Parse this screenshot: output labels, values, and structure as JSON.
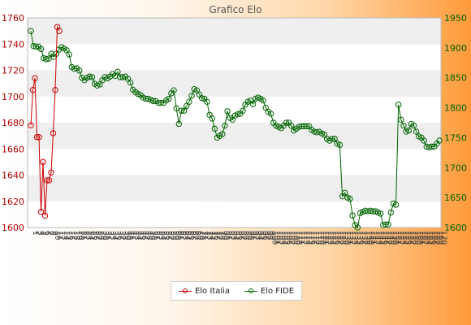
{
  "chart_data": {
    "type": "line",
    "title": "Grafico Elo",
    "xlabel": "",
    "ylabel": "",
    "grid": true,
    "legend_position": "bottom-center",
    "y_left": {
      "lim": [
        1600,
        1760
      ],
      "ticks": [
        1600,
        1620,
        1640,
        1660,
        1680,
        1700,
        1720,
        1740,
        1760
      ]
    },
    "y_right": {
      "lim": [
        1600,
        1950
      ],
      "ticks": [
        1600,
        1650,
        1700,
        1750,
        1800,
        1850,
        1900,
        1950
      ]
    },
    "series": [
      {
        "name": "Elo Italia",
        "axis": "left",
        "color": "#cc0000",
        "values": [
          1678,
          1705,
          1714,
          1669,
          1669,
          1612,
          1650,
          1609,
          1636,
          1636,
          1642,
          1672,
          1705,
          1753,
          1750
        ]
      },
      {
        "name": "Elo FIDE",
        "axis": "right",
        "color": "#006400",
        "values": [
          1928,
          1903,
          1902,
          1902,
          1898,
          1883,
          1881,
          1882,
          1890,
          1885,
          1890,
          1897,
          1901,
          1899,
          1896,
          1889,
          1868,
          1865,
          1866,
          1862,
          1850,
          1846,
          1850,
          1852,
          1851,
          1840,
          1837,
          1839,
          1846,
          1851,
          1849,
          1852,
          1856,
          1853,
          1860,
          1851,
          1851,
          1852,
          1848,
          1842,
          1830,
          1826,
          1823,
          1821,
          1817,
          1815,
          1815,
          1813,
          1811,
          1811,
          1808,
          1808,
          1808,
          1812,
          1815,
          1824,
          1829,
          1799,
          1773,
          1795,
          1795,
          1803,
          1810,
          1820,
          1831,
          1829,
          1822,
          1816,
          1815,
          1810,
          1788,
          1782,
          1765,
          1750,
          1753,
          1756,
          1770,
          1794,
          1783,
          1780,
          1787,
          1789,
          1790,
          1795,
          1805,
          1810,
          1812,
          1806,
          1815,
          1817,
          1815,
          1812,
          1800,
          1793,
          1790,
          1775,
          1770,
          1768,
          1766,
          1770,
          1775,
          1775,
          1770,
          1762,
          1765,
          1768,
          1769,
          1769,
          1769,
          1769,
          1763,
          1760,
          1759,
          1760,
          1757,
          1755,
          1748,
          1745,
          1748,
          1748,
          1740,
          1738,
          1652,
          1658,
          1650,
          1648,
          1620,
          1604,
          1600,
          1624,
          1626,
          1628,
          1627,
          1628,
          1627,
          1627,
          1625,
          1623,
          1604,
          1605,
          1605,
          1625,
          1640,
          1638,
          1805,
          1780,
          1770,
          1760,
          1762,
          1773,
          1770,
          1760,
          1752,
          1750,
          1745,
          1735,
          1734,
          1735,
          1735,
          1740,
          1745
        ]
      }
    ],
    "x_tick_labels": [
      "1",
      "2",
      "3",
      "4",
      "5",
      "6",
      "7",
      "8",
      "9",
      "10",
      "11",
      "12",
      "13",
      "14",
      "15",
      "16",
      "17",
      "18",
      "19",
      "20",
      "21",
      "22",
      "23",
      "24",
      "25",
      "26",
      "27",
      "28",
      "29",
      "30",
      "31",
      "32",
      "33",
      "34",
      "35",
      "36",
      "37",
      "38",
      "39",
      "40",
      "41",
      "42",
      "43",
      "44",
      "45",
      "46",
      "47",
      "48",
      "49",
      "50",
      "51",
      "52",
      "53",
      "54",
      "55",
      "56",
      "57",
      "58",
      "59",
      "60",
      "61",
      "62",
      "63",
      "64",
      "65",
      "66",
      "67",
      "68",
      "69",
      "70",
      "71",
      "72",
      "73",
      "74",
      "75",
      "76",
      "77",
      "78",
      "79",
      "80",
      "81",
      "82",
      "83",
      "84",
      "85",
      "86",
      "87",
      "88",
      "89",
      "90",
      "91",
      "92",
      "93",
      "94",
      "95",
      "96",
      "97",
      "98",
      "99",
      "100",
      "101",
      "102",
      "103",
      "104",
      "105",
      "106",
      "107",
      "108",
      "109",
      "110",
      "111",
      "112",
      "113",
      "114",
      "115",
      "116",
      "117",
      "118",
      "119",
      "120",
      "121",
      "122",
      "123",
      "124",
      "125",
      "126",
      "127",
      "128",
      "129",
      "130",
      "131",
      "132",
      "133",
      "134",
      "135",
      "136",
      "137",
      "138",
      "139",
      "140",
      "141",
      "142",
      "143",
      "144",
      "145",
      "146",
      "147",
      "148",
      "149",
      "150",
      "151",
      "152",
      "153",
      "154",
      "155",
      "156",
      "157",
      "158",
      "159",
      "160",
      "161",
      "162",
      "163",
      "164",
      "165",
      "166",
      "167",
      "168",
      "169",
      "170"
    ]
  },
  "legend": {
    "italia_label": "Elo Italia",
    "fide_label": "Elo FIDE"
  }
}
